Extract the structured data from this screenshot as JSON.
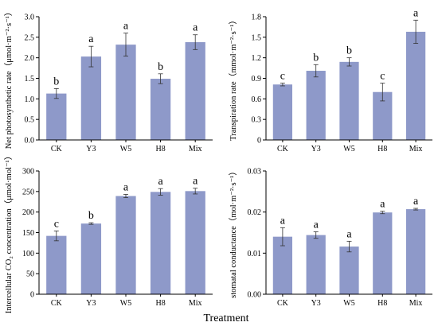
{
  "figure": {
    "xlabel": "Treatment",
    "bar_color": "#8e99c9",
    "axis_color": "#000000"
  },
  "chart_data": [
    {
      "type": "bar",
      "categories": [
        "CK",
        "Y3",
        "W5",
        "H8",
        "Mix"
      ],
      "values": [
        1.13,
        2.03,
        2.32,
        1.49,
        2.38
      ],
      "errors": [
        0.12,
        0.25,
        0.28,
        0.12,
        0.18
      ],
      "letters": [
        "b",
        "a",
        "a",
        "b",
        "a"
      ],
      "ylabel": "Net photosynthetic rate（μmol·m⁻²·s⁻¹）",
      "ylim": [
        0,
        3.0
      ],
      "yticks": [
        "0.0",
        "0.5",
        "1.0",
        "1.5",
        "2.0",
        "2.5",
        "3.0"
      ]
    },
    {
      "type": "bar",
      "categories": [
        "CK",
        "Y3",
        "W5",
        "H8",
        "Mix"
      ],
      "values": [
        0.81,
        1.01,
        1.14,
        0.7,
        1.58
      ],
      "errors": [
        0.02,
        0.09,
        0.06,
        0.13,
        0.17
      ],
      "letters": [
        "c",
        "b",
        "b",
        "c",
        "a"
      ],
      "ylabel": "Transpiration rate（mmol·m⁻²·s⁻¹）",
      "ylim": [
        0,
        1.8
      ],
      "yticks": [
        "0",
        "0.3",
        "0.6",
        "0.9",
        "1.2",
        "1.5",
        "1.8"
      ]
    },
    {
      "type": "bar",
      "categories": [
        "CK",
        "Y3",
        "W5",
        "H8",
        "Mix"
      ],
      "values": [
        142,
        172,
        239,
        249,
        251
      ],
      "errors": [
        12,
        2,
        4,
        8,
        7
      ],
      "letters": [
        "c",
        "b",
        "a",
        "a",
        "a"
      ],
      "ylabel": "Intercellular CO₂ concentration（μmol·mol⁻¹）",
      "ylim": [
        0,
        300
      ],
      "yticks": [
        "0",
        "50",
        "100",
        "150",
        "200",
        "250",
        "300"
      ]
    },
    {
      "type": "bar",
      "categories": [
        "CK",
        "Y3",
        "W5",
        "H8",
        "Mix"
      ],
      "values": [
        0.014,
        0.0144,
        0.0116,
        0.0199,
        0.0207
      ],
      "errors": [
        0.0022,
        0.0008,
        0.0013,
        0.0003,
        0.0002
      ],
      "letters": [
        "a",
        "a",
        "a",
        "a",
        "a"
      ],
      "ylabel": "stomatal conductance（mol·m⁻²·s⁻¹）",
      "ylim": [
        0,
        0.03
      ],
      "yticks": [
        "0.00",
        "0.01",
        "0.02",
        "0.03"
      ]
    }
  ]
}
